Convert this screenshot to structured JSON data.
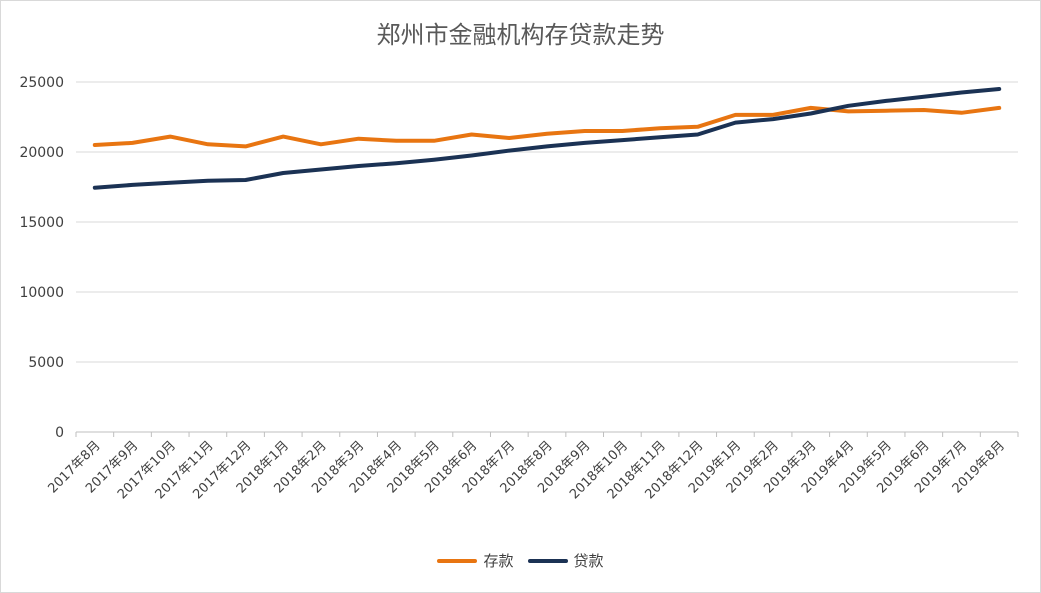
{
  "chart_data": {
    "type": "line",
    "title": "郑州市金融机构存贷款走势",
    "xlabel": "",
    "ylabel": "",
    "ylim": [
      0,
      25000
    ],
    "yticks": [
      0,
      5000,
      10000,
      15000,
      20000,
      25000
    ],
    "grid": true,
    "legend_position": "bottom",
    "categories": [
      "2017年8月",
      "2017年9月",
      "2017年10月",
      "2017年11月",
      "2017年12月",
      "2018年1月",
      "2018年2月",
      "2018年3月",
      "2018年4月",
      "2018年5月",
      "2018年6月",
      "2018年7月",
      "2018年8月",
      "2018年9月",
      "2018年10月",
      "2018年11月",
      "2018年12月",
      "2019年1月",
      "2019年2月",
      "2019年3月",
      "2019年4月",
      "2019年5月",
      "2019年6月",
      "2019年7月",
      "2019年8月"
    ],
    "series": [
      {
        "name": "存款",
        "color": "#e87511",
        "values": [
          20500,
          20650,
          21100,
          20550,
          20400,
          21100,
          20550,
          20950,
          20800,
          20800,
          21250,
          21000,
          21300,
          21500,
          21500,
          21700,
          21800,
          22650,
          22650,
          23150,
          22900,
          22950,
          23000,
          22800,
          23150
        ]
      },
      {
        "name": "贷款",
        "color": "#1b3254",
        "values": [
          17450,
          17650,
          17800,
          17950,
          18000,
          18500,
          18750,
          19000,
          19200,
          19450,
          19750,
          20100,
          20400,
          20650,
          20850,
          21050,
          21250,
          22100,
          22350,
          22750,
          23300,
          23650,
          23950,
          24250,
          24500
        ]
      }
    ]
  }
}
